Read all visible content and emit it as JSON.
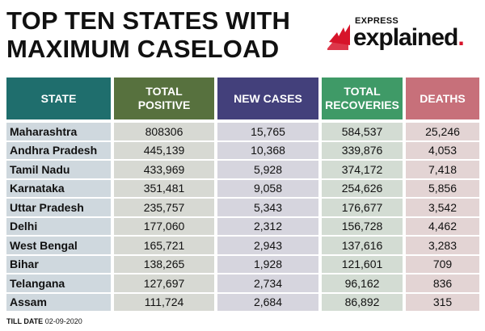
{
  "title": {
    "line1": "TOP TEN STATES WITH",
    "line2": "MAXIMUM CASELOAD"
  },
  "brand": {
    "express": "EXPRESS",
    "explained": "explained",
    "dot": ".",
    "accent_color": "#d7142a"
  },
  "table": {
    "headers": {
      "state": "STATE",
      "total_positive_line1": "TOTAL",
      "total_positive_line2": "POSITIVE",
      "new_cases": "NEW CASES",
      "total_recoveries_line1": "TOTAL",
      "total_recoveries_line2": "RECOVERIES",
      "deaths": "DEATHS"
    },
    "header_colors": {
      "state": "#1f6e6d",
      "total_positive": "#57713e",
      "new_cases": "#43407b",
      "total_recoveries": "#3f9a67",
      "deaths": "#c7707a"
    },
    "rows": [
      {
        "state": "Maharashtra",
        "total": "808306",
        "new": "15,765",
        "recoveries": "584,537",
        "deaths": "25,246"
      },
      {
        "state": "Andhra Pradesh",
        "total": "445,139",
        "new": "10,368",
        "recoveries": "339,876",
        "deaths": "4,053"
      },
      {
        "state": "Tamil Nadu",
        "total": "433,969",
        "new": "5,928",
        "recoveries": "374,172",
        "deaths": "7,418"
      },
      {
        "state": "Karnataka",
        "total": "351,481",
        "new": "9,058",
        "recoveries": "254,626",
        "deaths": "5,856"
      },
      {
        "state": "Uttar Pradesh",
        "total": "235,757",
        "new": "5,343",
        "recoveries": "176,677",
        "deaths": "3,542"
      },
      {
        "state": "Delhi",
        "total": "177,060",
        "new": "2,312",
        "recoveries": "156,728",
        "deaths": "4,462"
      },
      {
        "state": "West Bengal",
        "total": "165,721",
        "new": "2,943",
        "recoveries": "137,616",
        "deaths": "3,283"
      },
      {
        "state": "Bihar",
        "total": "138,265",
        "new": "1,928",
        "recoveries": "121,601",
        "deaths": "709"
      },
      {
        "state": "Telangana",
        "total": "127,697",
        "new": "2,734",
        "recoveries": "96,162",
        "deaths": "836"
      },
      {
        "state": "Assam",
        "total": "111,724",
        "new": "2,684",
        "recoveries": "86,892",
        "deaths": "315"
      }
    ]
  },
  "footer": {
    "label": "TILL DATE",
    "date": "02-09-2020"
  }
}
